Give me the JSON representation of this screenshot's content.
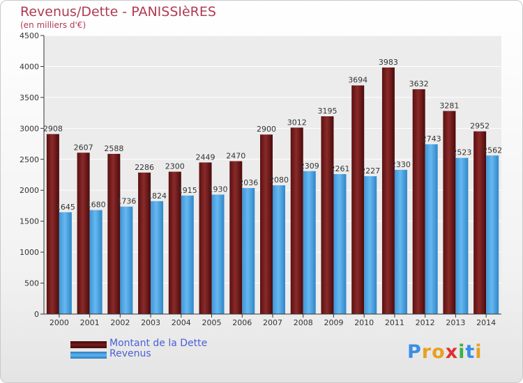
{
  "chart_data": {
    "type": "bar",
    "title": "Revenus/Dette - PANISSIèRES",
    "subtitle": "(en milliers d'€)",
    "categories": [
      "2000",
      "2001",
      "2002",
      "2003",
      "2004",
      "2005",
      "2006",
      "2007",
      "2008",
      "2009",
      "2010",
      "2011",
      "2012",
      "2013",
      "2014"
    ],
    "series": [
      {
        "name": "Montant de la Dette",
        "color": "#7a1c1c",
        "values": [
          2908,
          2607,
          2588,
          2286,
          2300,
          2449,
          2470,
          2900,
          3012,
          3195,
          3694,
          3983,
          3632,
          3281,
          2952
        ]
      },
      {
        "name": "Revenus",
        "color": "#4da3e0",
        "values": [
          1645,
          1680,
          1736,
          1824,
          1915,
          1930,
          2036,
          2080,
          2309,
          2261,
          2227,
          2330,
          2743,
          2523,
          2562
        ]
      }
    ],
    "yticks": [
      0,
      500,
      1000,
      1500,
      2000,
      2500,
      3000,
      3500,
      4000,
      4500
    ],
    "ylim": [
      0,
      4500
    ],
    "grid": true,
    "legend": "bottom-left"
  },
  "brand": {
    "letters": [
      "P",
      "r",
      "o",
      "x",
      "i",
      "t",
      "i"
    ],
    "colors": [
      "#3a8ee6",
      "#e8a020",
      "#e8a020",
      "#e03030",
      "#40b040",
      "#3a8ee6",
      "#e8a020"
    ]
  }
}
